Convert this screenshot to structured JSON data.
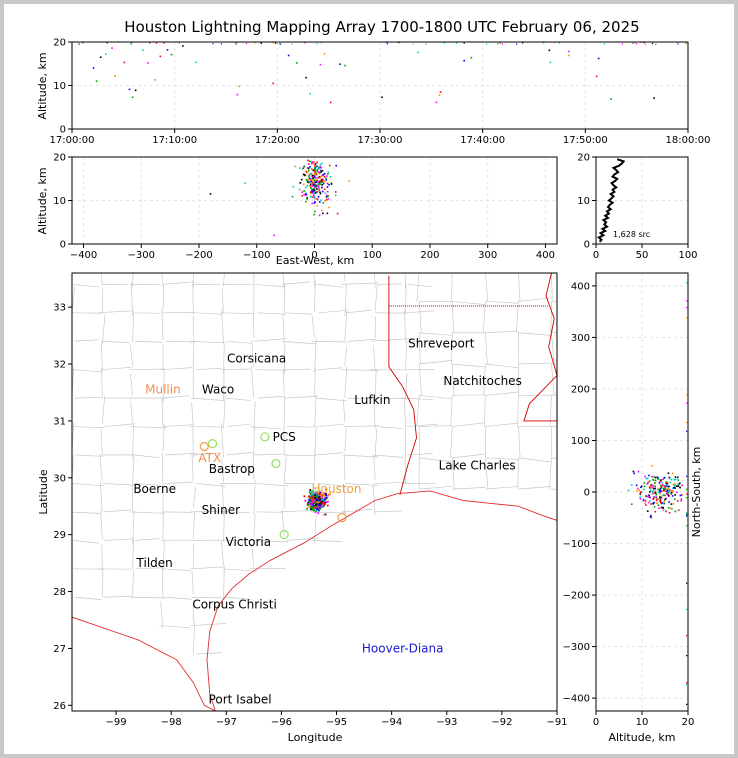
{
  "title": "Houston Lightning Mapping Array 1700-1800 UTC February 06, 2025",
  "colors": {
    "border": "#000000",
    "coast": "#e03030",
    "county": "#c8c8c8",
    "state": "#d00000",
    "source_palette": [
      "#0000ff",
      "#00a000",
      "#000000",
      "#00c8c8",
      "#ff00ff",
      "#ff8800",
      "#ff0000"
    ],
    "radar_orange": "#f0a040",
    "radar_green": "#90e060",
    "station_blue": "#1a1ad0"
  },
  "chart_data": [
    {
      "id": "time_altitude",
      "type": "scatter",
      "title": "",
      "xlabel": "",
      "ylabel": "Altitude, km",
      "xlim": [
        "17:00:00",
        "18:00:00"
      ],
      "ylim": [
        0,
        20
      ],
      "xticks": [
        "17:00:00",
        "17:10:00",
        "17:20:00",
        "17:30:00",
        "17:40:00",
        "17:50:00",
        "18:00:00"
      ],
      "yticks": [
        "0",
        "10",
        "20"
      ],
      "points_minutes": [
        [
          2.1,
          14
        ],
        [
          2.4,
          11
        ],
        [
          2.8,
          16.5
        ],
        [
          3.3,
          17.2
        ],
        [
          3.9,
          18.6
        ],
        [
          4.2,
          12.2
        ],
        [
          5.1,
          15.3
        ],
        [
          5.6,
          9.1
        ],
        [
          5.9,
          7.3
        ],
        [
          6.2,
          8.9
        ],
        [
          6.9,
          18.1
        ],
        [
          7.4,
          15.2
        ],
        [
          8.1,
          11.3
        ],
        [
          8.6,
          16.7
        ],
        [
          9.3,
          18.2
        ],
        [
          9.7,
          17.1
        ],
        [
          10.8,
          19.1
        ],
        [
          12.1,
          15.3
        ],
        [
          16.1,
          7.9
        ],
        [
          16.3,
          9.8
        ],
        [
          19.6,
          10.5
        ],
        [
          21.1,
          16.9
        ],
        [
          21.9,
          15.2
        ],
        [
          22.8,
          11.8
        ],
        [
          23.2,
          8.1
        ],
        [
          24.2,
          14.8
        ],
        [
          24.6,
          17.3
        ],
        [
          25.2,
          6.1
        ],
        [
          26.1,
          14.9
        ],
        [
          26.6,
          14.6
        ],
        [
          30.2,
          7.3
        ],
        [
          33.7,
          17.6
        ],
        [
          35.5,
          6.1
        ],
        [
          35.8,
          7.8
        ],
        [
          35.9,
          8.5
        ],
        [
          38.2,
          15.7
        ],
        [
          38.9,
          16.4
        ],
        [
          46.5,
          18.1
        ],
        [
          46.6,
          15.3
        ],
        [
          48.4,
          17.8
        ],
        [
          48.4,
          16.9
        ],
        [
          51.1,
          12.1
        ],
        [
          51.3,
          16.2
        ],
        [
          52.5,
          6.9
        ],
        [
          56.7,
          7.1
        ]
      ]
    },
    {
      "id": "ew_altitude",
      "type": "scatter",
      "title": "",
      "xlabel": "East-West, km",
      "ylabel": "Altitude, km",
      "xlim": [
        -420,
        420
      ],
      "ylim": [
        0,
        20
      ],
      "xticks": [
        "−400",
        "−300",
        "−200",
        "−100",
        "0",
        "100",
        "200",
        "300",
        "400"
      ],
      "yticks": [
        "0",
        "10",
        "20"
      ]
    },
    {
      "id": "altitude_histogram",
      "type": "line",
      "title": "",
      "xlabel": "",
      "ylabel": "",
      "xlim": [
        0,
        100
      ],
      "ylim": [
        0,
        20
      ],
      "xticks": [
        "0",
        "50",
        "100"
      ],
      "yticks": [
        "0",
        "10",
        "20"
      ],
      "altitude_km": [
        0.5,
        1,
        1.5,
        2,
        2.5,
        3,
        3.5,
        4,
        4.5,
        5,
        5.5,
        6,
        6.5,
        7,
        7.5,
        8,
        8.5,
        9,
        9.5,
        10,
        10.5,
        11,
        11.5,
        12,
        12.5,
        13,
        13.5,
        14,
        14.5,
        15,
        15.5,
        16,
        16.5,
        17,
        17.5,
        18,
        18.5,
        19,
        19.5
      ],
      "counts": [
        4,
        6,
        3,
        8,
        5,
        10,
        7,
        12,
        9,
        11,
        8,
        13,
        10,
        14,
        12,
        16,
        13,
        15,
        18,
        14,
        17,
        19,
        16,
        20,
        18,
        22,
        19,
        17,
        21,
        23,
        18,
        20,
        24,
        22,
        19,
        25,
        28,
        30,
        23
      ],
      "annotation": "1,628 src"
    },
    {
      "id": "plan_view",
      "type": "scatter",
      "title": "",
      "xlabel": "Longitude",
      "ylabel": "Latitude",
      "xlim": [
        -99.8,
        -91
      ],
      "ylim": [
        25.9,
        33.6
      ],
      "xticks": [
        "−99",
        "−98",
        "−97",
        "−96",
        "−95",
        "−94",
        "−93",
        "−92",
        "−91"
      ],
      "yticks": [
        "26",
        "27",
        "28",
        "29",
        "30",
        "31",
        "32",
        "33"
      ],
      "places": [
        {
          "name": "Shreveport",
          "lon": -93.1,
          "lat": 32.36,
          "color": "#000000"
        },
        {
          "name": "Corsicana",
          "lon": -96.45,
          "lat": 32.1,
          "color": "#000000"
        },
        {
          "name": "Natchitoches",
          "lon": -92.35,
          "lat": 31.7,
          "color": "#000000"
        },
        {
          "name": "Mullin",
          "lon": -98.15,
          "lat": 31.55,
          "color": "#f09050"
        },
        {
          "name": "Waco",
          "lon": -97.15,
          "lat": 31.55,
          "color": "#000000"
        },
        {
          "name": "Lufkin",
          "lon": -94.35,
          "lat": 31.37,
          "color": "#000000"
        },
        {
          "name": "PCS",
          "lon": -95.95,
          "lat": 30.72,
          "color": "#000000"
        },
        {
          "name": "ATX",
          "lon": -97.3,
          "lat": 30.35,
          "color": "#f09050"
        },
        {
          "name": "Bastrop",
          "lon": -96.9,
          "lat": 30.15,
          "color": "#000000"
        },
        {
          "name": "Lake Charles",
          "lon": -92.45,
          "lat": 30.22,
          "color": "#000000"
        },
        {
          "name": "Boerne",
          "lon": -98.3,
          "lat": 29.8,
          "color": "#000000"
        },
        {
          "name": "Houston",
          "lon": -95.0,
          "lat": 29.8,
          "color": "#f0a040"
        },
        {
          "name": "Shiner",
          "lon": -97.1,
          "lat": 29.43,
          "color": "#000000"
        },
        {
          "name": "Victoria",
          "lon": -96.6,
          "lat": 28.87,
          "color": "#000000"
        },
        {
          "name": "Tilden",
          "lon": -98.3,
          "lat": 28.5,
          "color": "#000000"
        },
        {
          "name": "Corpus Christi",
          "lon": -96.85,
          "lat": 27.77,
          "color": "#000000"
        },
        {
          "name": "Hoover-Diana",
          "lon": -93.8,
          "lat": 27.0,
          "color": "#1a1ad0"
        },
        {
          "name": "Port Isabel",
          "lon": -96.75,
          "lat": 26.1,
          "color": "#000000"
        }
      ]
    },
    {
      "id": "altitude_ns",
      "type": "scatter",
      "title": "",
      "xlabel": "Altitude, km",
      "ylabel": "North-South, km",
      "xlim": [
        0,
        20
      ],
      "ylim": [
        -425,
        425
      ],
      "xticks": [
        "0",
        "10",
        "20"
      ],
      "yticks": [
        "−400",
        "−300",
        "−200",
        "−100",
        "0",
        "100",
        "200",
        "300",
        "400"
      ]
    }
  ]
}
